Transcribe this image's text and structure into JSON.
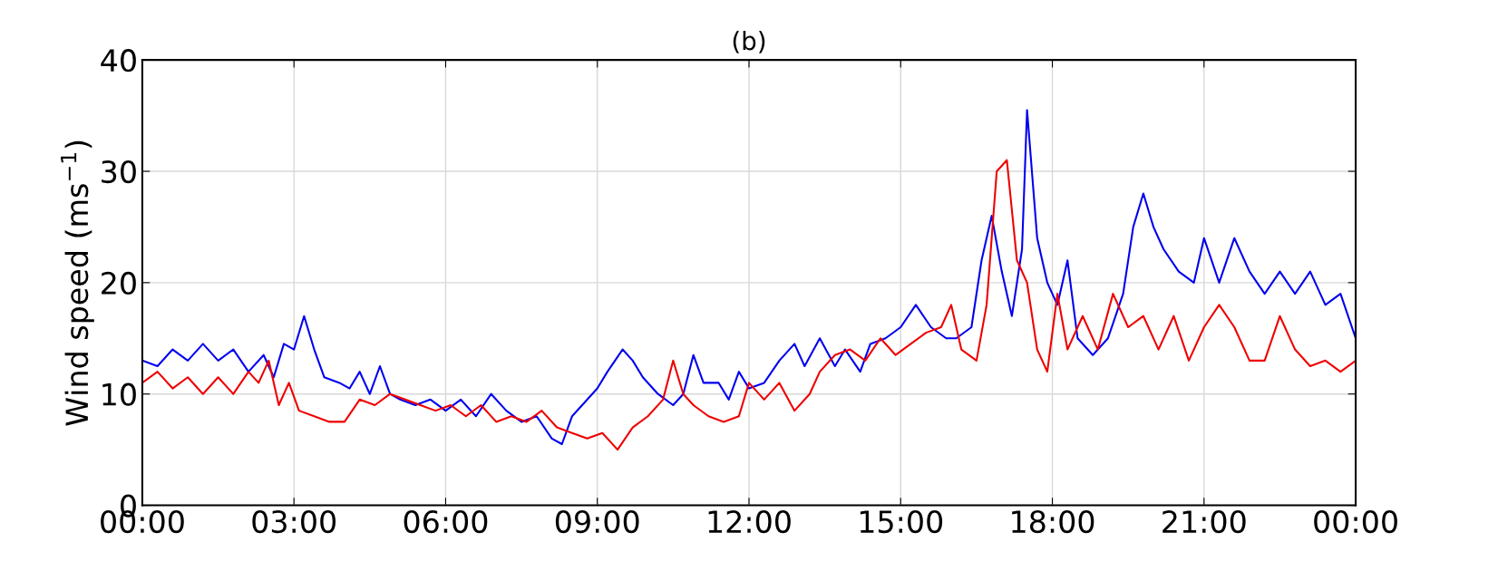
{
  "chart_data": {
    "type": "line",
    "title": "(b)",
    "ylabel": "Wind speed (ms$^{−1}$)",
    "xlim": [
      0,
      24
    ],
    "xticks": [
      {
        "value": 0,
        "label": "00:00"
      },
      {
        "value": 3,
        "label": "03:00"
      },
      {
        "value": 6,
        "label": "06:00"
      },
      {
        "value": 9,
        "label": "09:00"
      },
      {
        "value": 12,
        "label": "12:00"
      },
      {
        "value": 15,
        "label": "15:00"
      },
      {
        "value": 18,
        "label": "18:00"
      },
      {
        "value": 21,
        "label": "21:00"
      },
      {
        "value": 24,
        "label": "00:00"
      }
    ],
    "ylim": [
      0,
      40
    ],
    "yticks": [
      0,
      10,
      20,
      30,
      40
    ],
    "grid": true,
    "line_style": "solid",
    "series": [
      {
        "color": "#0000ee",
        "x": [
          0,
          0.3,
          0.6,
          0.9,
          1.2,
          1.5,
          1.8,
          2.1,
          2.4,
          2.6,
          2.8,
          3.0,
          3.2,
          3.4,
          3.6,
          3.9,
          4.1,
          4.3,
          4.5,
          4.7,
          4.9,
          5.1,
          5.4,
          5.7,
          6.0,
          6.3,
          6.6,
          6.9,
          7.2,
          7.5,
          7.8,
          8.1,
          8.3,
          8.5,
          8.7,
          9.0,
          9.2,
          9.5,
          9.7,
          9.9,
          10.2,
          10.5,
          10.7,
          10.9,
          11.1,
          11.4,
          11.6,
          11.8,
          12.0,
          12.3,
          12.6,
          12.9,
          13.1,
          13.4,
          13.7,
          13.9,
          14.2,
          14.4,
          14.7,
          15.0,
          15.3,
          15.6,
          15.9,
          16.1,
          16.4,
          16.6,
          16.8,
          17.0,
          17.2,
          17.4,
          17.5,
          17.7,
          17.9,
          18.1,
          18.3,
          18.5,
          18.8,
          19.1,
          19.4,
          19.6,
          19.8,
          20.0,
          20.2,
          20.5,
          20.8,
          21.0,
          21.3,
          21.6,
          21.9,
          22.2,
          22.5,
          22.8,
          23.1,
          23.4,
          23.7,
          24.0
        ],
        "values": [
          13,
          12.5,
          14,
          13,
          14.5,
          13,
          14,
          12,
          13.5,
          11.5,
          14.5,
          14,
          17,
          14,
          11.5,
          11,
          10.5,
          12,
          10,
          12.5,
          10,
          9.5,
          9,
          9.5,
          8.5,
          9.5,
          8,
          10,
          8.5,
          7.5,
          8,
          6,
          5.5,
          8,
          9,
          10.5,
          12,
          14,
          13,
          11.5,
          10,
          9,
          10,
          13.5,
          11,
          11,
          9.5,
          12,
          10.5,
          11,
          13,
          14.5,
          12.5,
          15,
          12.5,
          14,
          12,
          14.5,
          15,
          16,
          18,
          16,
          15,
          15,
          16,
          22,
          26,
          21,
          17,
          23,
          35.5,
          24,
          20,
          18,
          22,
          15,
          13.5,
          15,
          19,
          25,
          28,
          25,
          23,
          21,
          20,
          24,
          20,
          24,
          21,
          19,
          21,
          19,
          21,
          18,
          19,
          15
        ]
      },
      {
        "color": "#ee0000",
        "x": [
          0,
          0.3,
          0.6,
          0.9,
          1.2,
          1.5,
          1.8,
          2.1,
          2.3,
          2.5,
          2.7,
          2.9,
          3.1,
          3.4,
          3.7,
          4.0,
          4.3,
          4.6,
          4.9,
          5.2,
          5.5,
          5.8,
          6.1,
          6.4,
          6.7,
          7.0,
          7.3,
          7.6,
          7.9,
          8.2,
          8.5,
          8.8,
          9.1,
          9.4,
          9.7,
          10.0,
          10.3,
          10.5,
          10.7,
          10.9,
          11.2,
          11.5,
          11.8,
          12.0,
          12.3,
          12.6,
          12.9,
          13.2,
          13.4,
          13.7,
          14.0,
          14.3,
          14.6,
          14.9,
          15.2,
          15.5,
          15.8,
          16.0,
          16.2,
          16.5,
          16.7,
          16.9,
          17.1,
          17.3,
          17.5,
          17.7,
          17.9,
          18.1,
          18.3,
          18.6,
          18.9,
          19.2,
          19.5,
          19.8,
          20.1,
          20.4,
          20.7,
          21.0,
          21.3,
          21.6,
          21.9,
          22.2,
          22.5,
          22.8,
          23.1,
          23.4,
          23.7,
          24.0
        ],
        "values": [
          11,
          12,
          10.5,
          11.5,
          10,
          11.5,
          10,
          12,
          11,
          13,
          9,
          11,
          8.5,
          8,
          7.5,
          7.5,
          9.5,
          9,
          10,
          9.5,
          9,
          8.5,
          9,
          8,
          9,
          7.5,
          8,
          7.5,
          8.5,
          7,
          6.5,
          6,
          6.5,
          5,
          7,
          8,
          9.5,
          13,
          10,
          9,
          8,
          7.5,
          8,
          11,
          9.5,
          11,
          8.5,
          10,
          12,
          13.5,
          14,
          13,
          15,
          13.5,
          14.5,
          15.5,
          16,
          18,
          14,
          13,
          18,
          30,
          31,
          22,
          20,
          14,
          12,
          19,
          14,
          17,
          14,
          19,
          16,
          17,
          14,
          17,
          13,
          16,
          18,
          16,
          13,
          13,
          17,
          14,
          12.5,
          13,
          12,
          13
        ]
      }
    ]
  }
}
